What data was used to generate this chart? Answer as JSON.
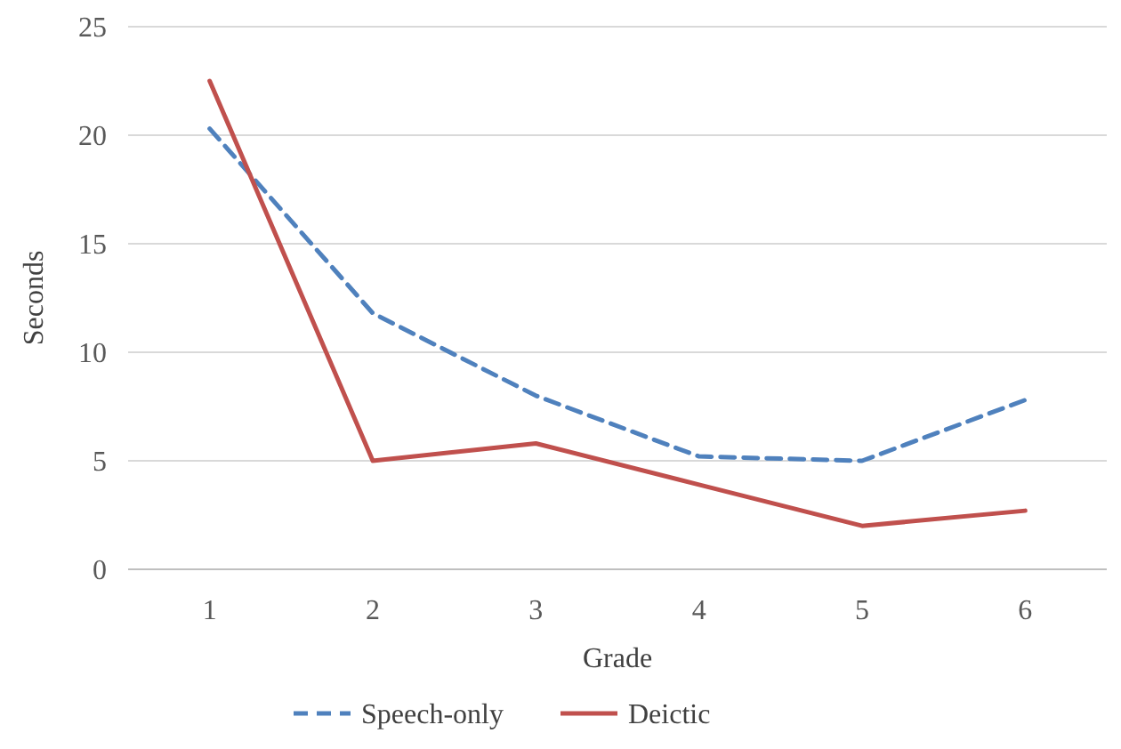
{
  "chart_data": {
    "type": "line",
    "xlabel": "Grade",
    "ylabel": "Seconds",
    "categories": [
      "1",
      "2",
      "3",
      "4",
      "5",
      "6"
    ],
    "ylim": [
      0,
      25
    ],
    "yticks": [
      0,
      5,
      10,
      15,
      20,
      25
    ],
    "grid": "y",
    "legend": "bottom",
    "marker": "none",
    "series": [
      {
        "name": "Speech-only",
        "color": "#4f81bd",
        "line_style": "dashed",
        "values": [
          20.3,
          11.8,
          8.0,
          5.2,
          5.0,
          7.8
        ]
      },
      {
        "name": "Deictic",
        "color": "#c0504d",
        "line_style": "solid",
        "values": [
          22.5,
          5.0,
          5.8,
          3.9,
          2.0,
          2.7
        ]
      }
    ]
  }
}
